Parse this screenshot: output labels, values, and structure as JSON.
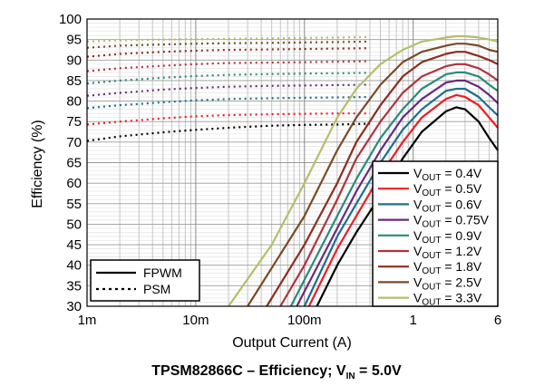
{
  "chart_data": {
    "type": "line",
    "title": "TPSM82866C – Efficiency; V",
    "title_sub": "IN",
    "title_tail": " = 5.0V",
    "xlabel": "Output Current (A)",
    "ylabel": "Efficiency (%)",
    "xscale": "log",
    "xlim": [
      0.001,
      6
    ],
    "ylim": [
      30,
      100
    ],
    "x_ticks": [
      {
        "value": 0.001,
        "label": "1m"
      },
      {
        "value": 0.01,
        "label": "10m"
      },
      {
        "value": 0.1,
        "label": "100m"
      },
      {
        "value": 1,
        "label": "1"
      },
      {
        "value": 6,
        "label": "6"
      }
    ],
    "y_ticks": [
      30,
      35,
      40,
      45,
      50,
      55,
      60,
      65,
      70,
      75,
      80,
      85,
      90,
      95,
      100
    ],
    "grid": true,
    "mode_legend": [
      {
        "label": "FPWM",
        "style": "solid"
      },
      {
        "label": "PSM",
        "style": "dotted"
      }
    ],
    "series": [
      {
        "prefix": "V",
        "sub": "OUT",
        "suffix": " = 0.4V",
        "color": "#000000",
        "fpwm": [
          [
            0.13,
            30
          ],
          [
            0.2,
            40
          ],
          [
            0.3,
            48
          ],
          [
            0.5,
            57
          ],
          [
            0.8,
            66
          ],
          [
            1.2,
            72.5
          ],
          [
            2,
            77.5
          ],
          [
            2.5,
            78.5
          ],
          [
            3,
            78
          ],
          [
            4,
            75
          ],
          [
            5,
            71
          ],
          [
            6,
            68
          ]
        ],
        "psm": [
          [
            0.001,
            70.3
          ],
          [
            0.002,
            71.4
          ],
          [
            0.005,
            72.4
          ],
          [
            0.01,
            73
          ],
          [
            0.02,
            73.5
          ],
          [
            0.05,
            74
          ],
          [
            0.1,
            74.2
          ],
          [
            0.2,
            74.3
          ],
          [
            0.4,
            74.5
          ]
        ]
      },
      {
        "prefix": "V",
        "sub": "OUT",
        "suffix": " = 0.5V",
        "color": "#ee1c25",
        "fpwm": [
          [
            0.11,
            30
          ],
          [
            0.2,
            44
          ],
          [
            0.3,
            52
          ],
          [
            0.5,
            62
          ],
          [
            0.8,
            70
          ],
          [
            1.2,
            76
          ],
          [
            2,
            80.5
          ],
          [
            2.5,
            81.5
          ],
          [
            3,
            81
          ],
          [
            4,
            79
          ],
          [
            5,
            76
          ],
          [
            6,
            73.5
          ]
        ],
        "psm": [
          [
            0.001,
            74.3
          ],
          [
            0.002,
            75
          ],
          [
            0.005,
            75.8
          ],
          [
            0.01,
            76.3
          ],
          [
            0.02,
            76.6
          ],
          [
            0.05,
            76.8
          ],
          [
            0.1,
            76.9
          ],
          [
            0.2,
            77
          ],
          [
            0.4,
            77
          ]
        ]
      },
      {
        "prefix": "V",
        "sub": "OUT",
        "suffix": " = 0.6V",
        "color": "#1f6e8c",
        "fpwm": [
          [
            0.1,
            30
          ],
          [
            0.2,
            47
          ],
          [
            0.3,
            55
          ],
          [
            0.5,
            65
          ],
          [
            0.8,
            73
          ],
          [
            1.2,
            78
          ],
          [
            2,
            82.5
          ],
          [
            2.5,
            83
          ],
          [
            3,
            83
          ],
          [
            4,
            81
          ],
          [
            5,
            78.5
          ],
          [
            6,
            76.5
          ]
        ],
        "psm": [
          [
            0.001,
            78.3
          ],
          [
            0.002,
            79
          ],
          [
            0.005,
            79.7
          ],
          [
            0.01,
            80.2
          ],
          [
            0.02,
            80.5
          ],
          [
            0.05,
            80.7
          ],
          [
            0.1,
            80.8
          ],
          [
            0.2,
            80.9
          ],
          [
            0.4,
            81
          ]
        ]
      },
      {
        "prefix": "V",
        "sub": "OUT",
        "suffix": " = 0.75V",
        "color": "#6a2a7a",
        "fpwm": [
          [
            0.085,
            30
          ],
          [
            0.2,
            49
          ],
          [
            0.3,
            58
          ],
          [
            0.5,
            68
          ],
          [
            0.8,
            76
          ],
          [
            1.2,
            80.5
          ],
          [
            2,
            84.5
          ],
          [
            2.5,
            85
          ],
          [
            3,
            85
          ],
          [
            4,
            83.5
          ],
          [
            5,
            81.5
          ],
          [
            6,
            79.5
          ]
        ],
        "psm": [
          [
            0.001,
            81.3
          ],
          [
            0.002,
            82
          ],
          [
            0.005,
            82.8
          ],
          [
            0.01,
            83.2
          ],
          [
            0.02,
            83.5
          ],
          [
            0.05,
            83.7
          ],
          [
            0.1,
            83.8
          ],
          [
            0.2,
            83.9
          ],
          [
            0.4,
            84
          ]
        ]
      },
      {
        "prefix": "V",
        "sub": "OUT",
        "suffix": " = 0.9V",
        "color": "#2a8a7a",
        "fpwm": [
          [
            0.075,
            30
          ],
          [
            0.2,
            52
          ],
          [
            0.3,
            61
          ],
          [
            0.5,
            71
          ],
          [
            0.8,
            78
          ],
          [
            1.2,
            83
          ],
          [
            2,
            86.5
          ],
          [
            2.5,
            87
          ],
          [
            3,
            87
          ],
          [
            4,
            86
          ],
          [
            5,
            84
          ],
          [
            6,
            82.5
          ]
        ],
        "psm": [
          [
            0.001,
            84.3
          ],
          [
            0.002,
            85
          ],
          [
            0.005,
            85.7
          ],
          [
            0.01,
            86.1
          ],
          [
            0.02,
            86.4
          ],
          [
            0.05,
            86.6
          ],
          [
            0.1,
            86.7
          ],
          [
            0.2,
            86.8
          ],
          [
            0.4,
            86.9
          ]
        ]
      },
      {
        "prefix": "V",
        "sub": "OUT",
        "suffix": " = 1.2V",
        "color": "#b0323f",
        "fpwm": [
          [
            0.06,
            30
          ],
          [
            0.1,
            40
          ],
          [
            0.2,
            56
          ],
          [
            0.3,
            66
          ],
          [
            0.5,
            75
          ],
          [
            0.8,
            82
          ],
          [
            1.2,
            86
          ],
          [
            2,
            88.5
          ],
          [
            2.5,
            89
          ],
          [
            3,
            89
          ],
          [
            4,
            88
          ],
          [
            5,
            86.5
          ],
          [
            6,
            85
          ]
        ],
        "psm": [
          [
            0.001,
            87.3
          ],
          [
            0.002,
            88
          ],
          [
            0.005,
            88.6
          ],
          [
            0.01,
            89
          ],
          [
            0.02,
            89.3
          ],
          [
            0.05,
            89.4
          ],
          [
            0.1,
            89.5
          ],
          [
            0.2,
            89.6
          ],
          [
            0.4,
            89.7
          ]
        ]
      },
      {
        "prefix": "V",
        "sub": "OUT",
        "suffix": " = 1.8V",
        "color": "#8b2d1e",
        "fpwm": [
          [
            0.045,
            30
          ],
          [
            0.1,
            45
          ],
          [
            0.2,
            60
          ],
          [
            0.3,
            70
          ],
          [
            0.5,
            79
          ],
          [
            0.8,
            86
          ],
          [
            1.2,
            89.5
          ],
          [
            2,
            91.5
          ],
          [
            2.5,
            92
          ],
          [
            3,
            92
          ],
          [
            4,
            91
          ],
          [
            5,
            90
          ],
          [
            6,
            89
          ]
        ],
        "psm": [
          [
            0.001,
            90.8
          ],
          [
            0.002,
            91.5
          ],
          [
            0.005,
            92
          ],
          [
            0.01,
            92.3
          ],
          [
            0.02,
            92.5
          ],
          [
            0.05,
            92.6
          ],
          [
            0.1,
            92.7
          ],
          [
            0.2,
            92.8
          ],
          [
            0.4,
            92.9
          ]
        ]
      },
      {
        "prefix": "V",
        "sub": "OUT",
        "suffix": " = 2.5V",
        "color": "#7a4a28",
        "fpwm": [
          [
            0.03,
            30
          ],
          [
            0.1,
            52
          ],
          [
            0.2,
            68
          ],
          [
            0.3,
            76
          ],
          [
            0.5,
            84
          ],
          [
            0.8,
            89.5
          ],
          [
            1.2,
            92
          ],
          [
            2,
            93.5
          ],
          [
            2.5,
            94
          ],
          [
            3,
            94
          ],
          [
            4,
            93.5
          ],
          [
            5,
            92.5
          ],
          [
            6,
            92
          ]
        ],
        "psm": [
          [
            0.001,
            93
          ],
          [
            0.002,
            93.5
          ],
          [
            0.005,
            93.8
          ],
          [
            0.01,
            94
          ],
          [
            0.02,
            94.1
          ],
          [
            0.05,
            94.2
          ],
          [
            0.1,
            94.3
          ],
          [
            0.2,
            94.4
          ],
          [
            0.4,
            94.5
          ]
        ]
      },
      {
        "prefix": "V",
        "sub": "OUT",
        "suffix": " = 3.3V",
        "color": "#b7bd6b",
        "fpwm": [
          [
            0.02,
            30
          ],
          [
            0.05,
            45
          ],
          [
            0.1,
            60
          ],
          [
            0.2,
            76
          ],
          [
            0.3,
            83
          ],
          [
            0.5,
            89
          ],
          [
            0.8,
            92.5
          ],
          [
            1.2,
            94.5
          ],
          [
            2,
            95.5
          ],
          [
            2.5,
            95.8
          ],
          [
            3,
            95.8
          ],
          [
            4,
            95.5
          ],
          [
            5,
            95
          ],
          [
            6,
            94.5
          ]
        ],
        "psm": [
          [
            0.001,
            94.5
          ],
          [
            0.002,
            94.8
          ],
          [
            0.005,
            95
          ],
          [
            0.01,
            95.1
          ],
          [
            0.02,
            95.2
          ],
          [
            0.05,
            95.3
          ],
          [
            0.1,
            95.4
          ],
          [
            0.2,
            95.5
          ],
          [
            0.4,
            95.6
          ]
        ]
      }
    ]
  }
}
